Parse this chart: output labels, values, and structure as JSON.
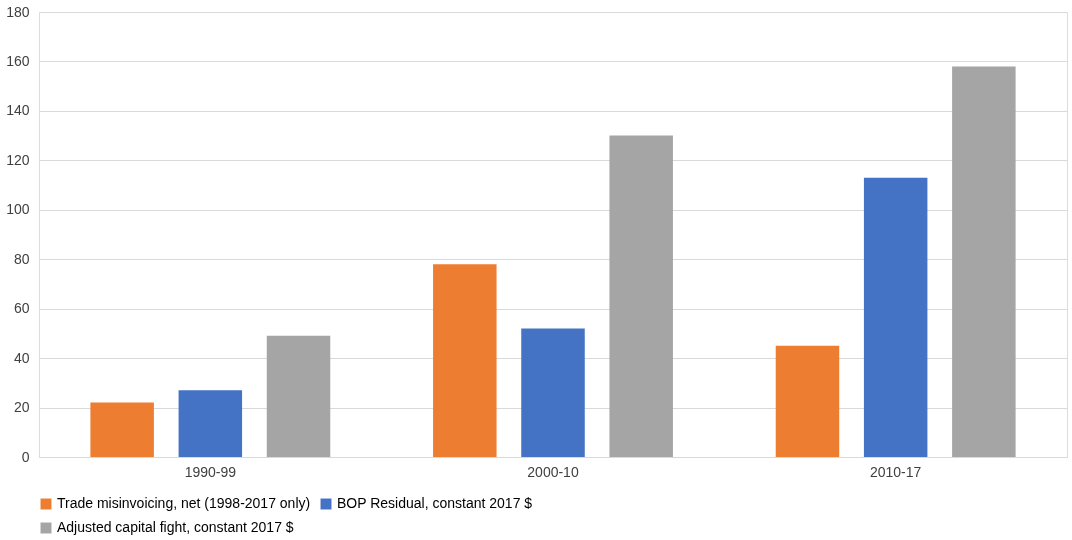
{
  "chart_data": {
    "type": "bar",
    "categories": [
      "1990-99",
      "2000-10",
      "2010-17"
    ],
    "series": [
      {
        "name": "Trade misinvoicing, net  (1998-2017 only)",
        "color": "#ed7d31",
        "values": [
          22,
          78,
          45
        ]
      },
      {
        "name": "BOP Residual, constant 2017 $",
        "color": "#4472c4",
        "values": [
          27,
          52,
          113
        ]
      },
      {
        "name": "Adjusted capital fight, constant 2017 $",
        "color": "#a5a5a5",
        "values": [
          49,
          130,
          158
        ]
      }
    ],
    "ylim": [
      0,
      180
    ],
    "yticks": [
      0,
      20,
      40,
      60,
      80,
      100,
      120,
      140,
      160,
      180
    ],
    "grid": "y",
    "legend": "bottom"
  }
}
